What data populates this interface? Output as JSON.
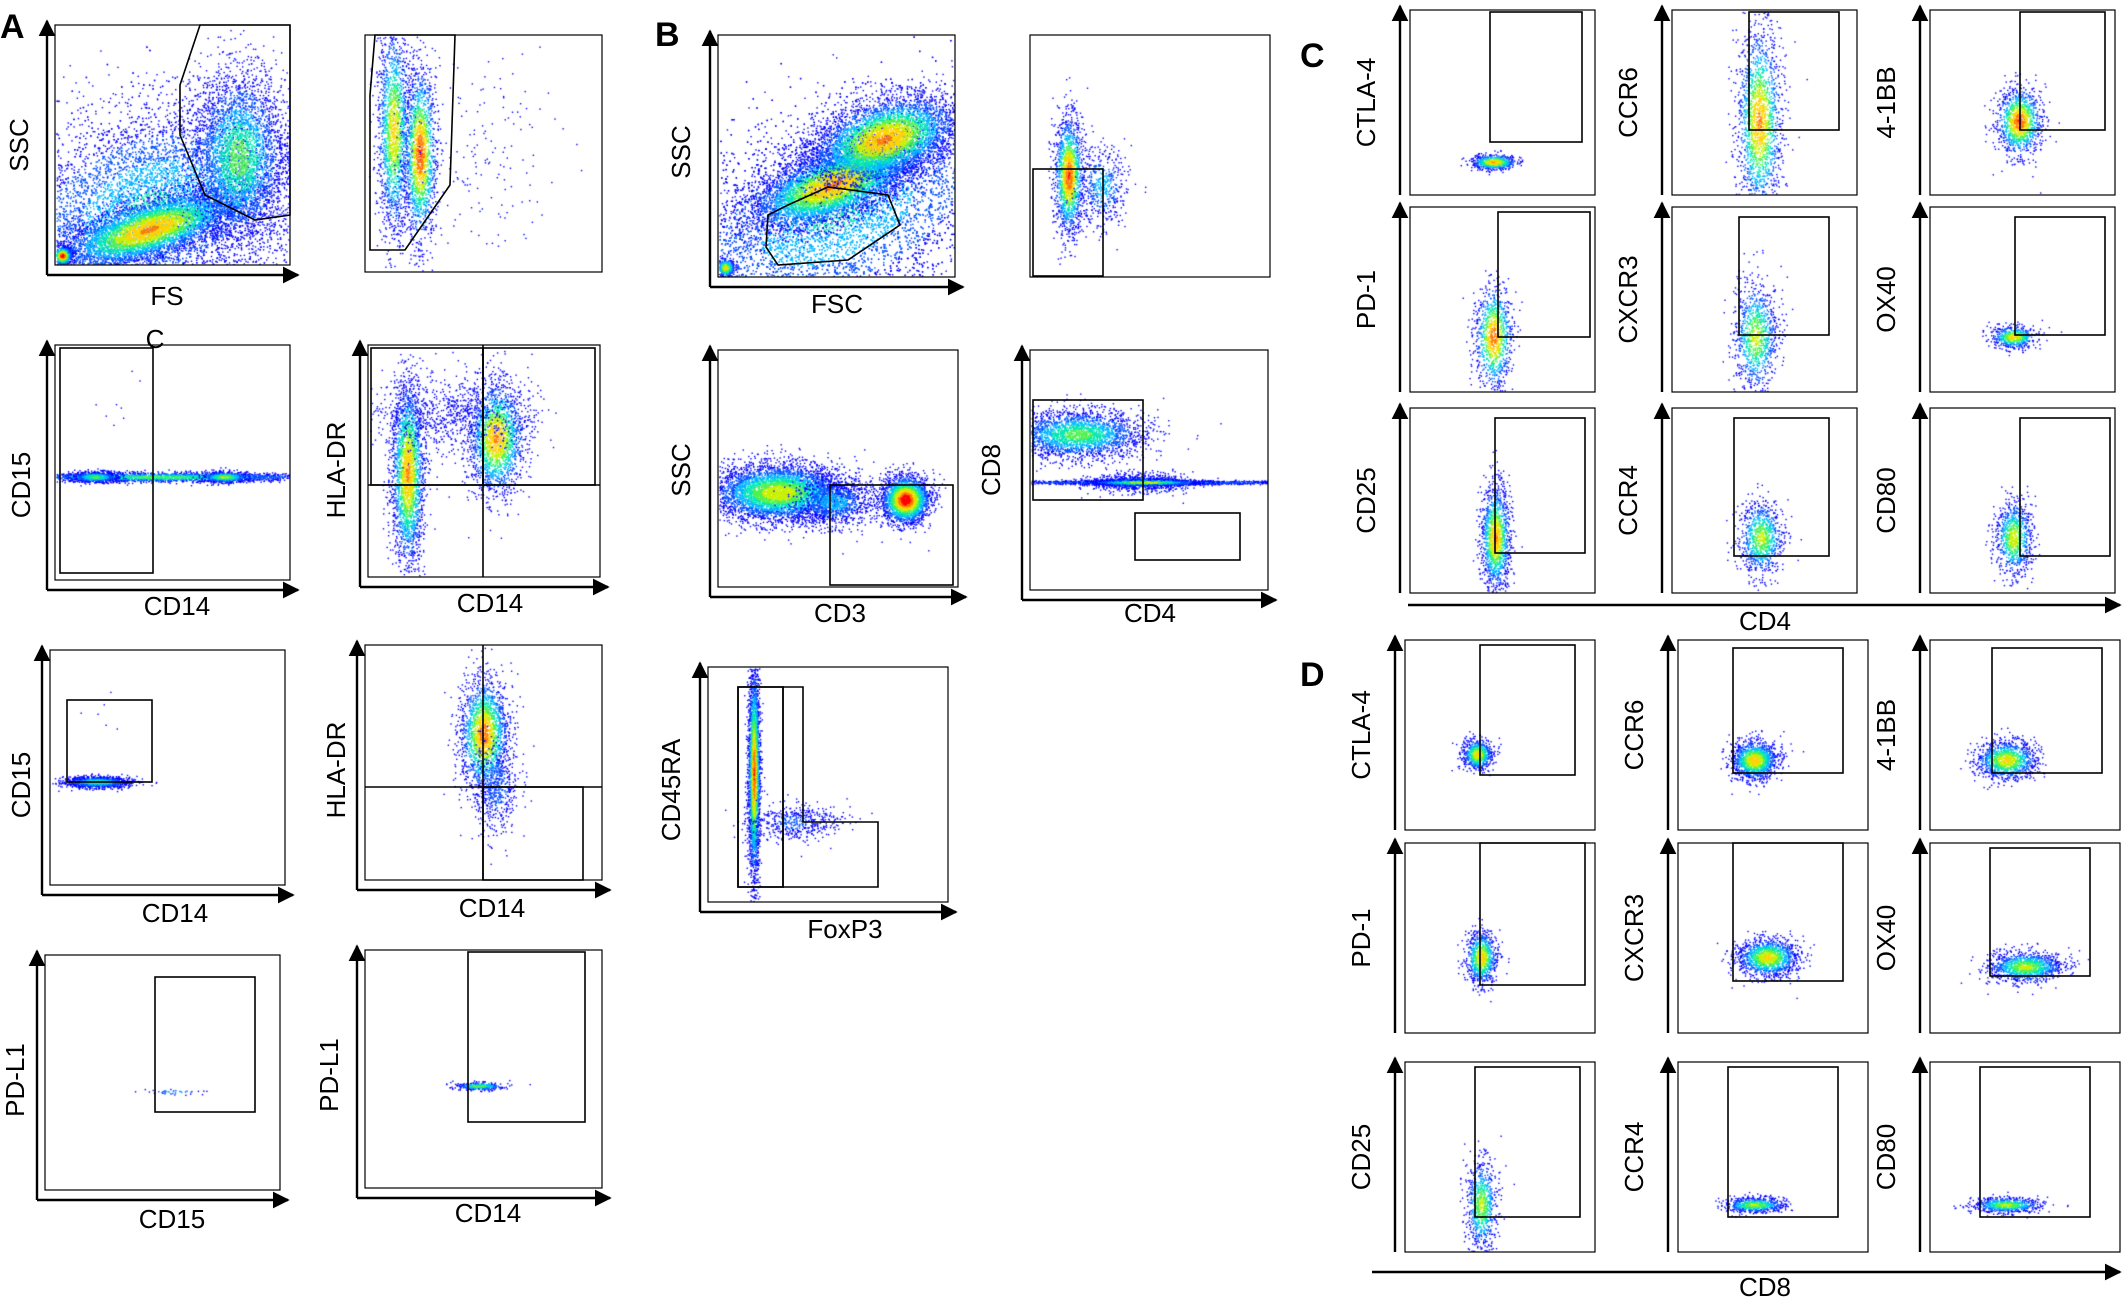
{
  "colors": {
    "density_scale": [
      "#0000ff",
      "#0050ff",
      "#00b4ff",
      "#00e6b4",
      "#50f050",
      "#c8f000",
      "#ffd200",
      "#ff7800",
      "#ff0000"
    ],
    "gate_stroke": "#000000",
    "axis_stroke": "#000000"
  },
  "panels": {
    "A": {
      "letter": "A",
      "plots": [
        {
          "id": "a-fs-ssc",
          "x_label": "FS",
          "y_label": "SSC"
        },
        {
          "id": "a-gated-scatter",
          "x_label": "",
          "y_label": ""
        },
        {
          "id": "a-cd14-cd15-1",
          "x_label": "CD14",
          "y_label": "CD15",
          "annotation": "C"
        },
        {
          "id": "a-cd14-hladr-1",
          "x_label": "CD14",
          "y_label": "HLA-DR"
        },
        {
          "id": "a-cd14-cd15-2",
          "x_label": "CD14",
          "y_label": "CD15"
        },
        {
          "id": "a-cd14-hladr-2",
          "x_label": "CD14",
          "y_label": "HLA-DR"
        },
        {
          "id": "a-cd15-pdl1",
          "x_label": "CD15",
          "y_label": "PD-L1"
        },
        {
          "id": "a-cd14-pdl1",
          "x_label": "CD14",
          "y_label": "PD-L1"
        }
      ]
    },
    "B": {
      "letter": "B",
      "plots": [
        {
          "id": "b-fsc-ssc",
          "x_label": "FSC",
          "y_label": "SSC"
        },
        {
          "id": "b-gated-scatter",
          "x_label": "",
          "y_label": ""
        },
        {
          "id": "b-cd3-ssc",
          "x_label": "CD3",
          "y_label": "SSC"
        },
        {
          "id": "b-cd4-cd8",
          "x_label": "CD4",
          "y_label": "CD8"
        },
        {
          "id": "b-foxp3-cd45ra",
          "x_label": "FoxP3",
          "y_label": "CD45RA"
        }
      ]
    },
    "C": {
      "letter": "C",
      "shared_x_label": "CD4",
      "plots": [
        {
          "y_label": "CTLA-4"
        },
        {
          "y_label": "CCR6"
        },
        {
          "y_label": "4-1BB"
        },
        {
          "y_label": "PD-1"
        },
        {
          "y_label": "CXCR3"
        },
        {
          "y_label": "OX40"
        },
        {
          "y_label": "CD25"
        },
        {
          "y_label": "CCR4"
        },
        {
          "y_label": "CD80"
        }
      ]
    },
    "D": {
      "letter": "D",
      "shared_x_label": "CD8",
      "plots": [
        {
          "y_label": "CTLA-4"
        },
        {
          "y_label": "CCR6"
        },
        {
          "y_label": "4-1BB"
        },
        {
          "y_label": "PD-1"
        },
        {
          "y_label": "CXCR3"
        },
        {
          "y_label": "OX40"
        },
        {
          "y_label": "CD25"
        },
        {
          "y_label": "CCR4"
        },
        {
          "y_label": "CD80"
        }
      ]
    }
  }
}
